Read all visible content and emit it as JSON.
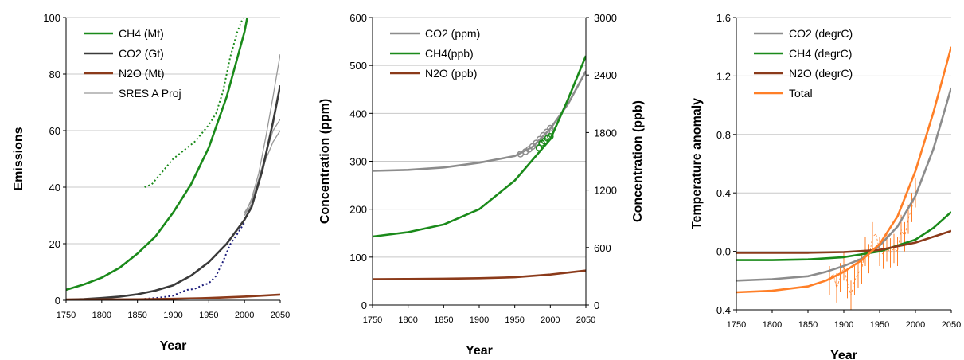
{
  "chart_data": [
    {
      "type": "line",
      "xlabel": "Year",
      "ylabel": "Emissions",
      "xlim": [
        1750,
        2050
      ],
      "ylim": [
        0,
        100
      ],
      "xticks": [
        1750,
        1800,
        1850,
        1900,
        1950,
        2000,
        2050
      ],
      "yticks": [
        0,
        20,
        40,
        60,
        80,
        100
      ],
      "legend": "top-left",
      "grid": "horizontal",
      "series": [
        {
          "name": "CH4 (Mt)",
          "color": "#1a8a1a",
          "x": [
            1750,
            1775,
            1800,
            1825,
            1850,
            1875,
            1900,
            1925,
            1950,
            1975,
            2000,
            2010
          ],
          "y": [
            3.7,
            5.6,
            8,
            11.5,
            16.5,
            22.5,
            31,
            41,
            54,
            72,
            95,
            108
          ]
        },
        {
          "name": "CO2 (Gt)",
          "color": "#3a3a3a",
          "x": [
            1750,
            1775,
            1800,
            1825,
            1850,
            1875,
            1900,
            1925,
            1950,
            1975,
            2000,
            2010,
            2025,
            2040,
            2050
          ],
          "y": [
            0.2,
            0.4,
            0.8,
            1.3,
            2.1,
            3.4,
            5.3,
            8.7,
            13.5,
            20,
            28.5,
            33,
            46,
            63,
            76
          ]
        },
        {
          "name": "N2O (Mt)",
          "color": "#8b3a1a",
          "x": [
            1750,
            1800,
            1850,
            1900,
            1950,
            2000,
            2050
          ],
          "y": [
            0.25,
            0.3,
            0.35,
            0.5,
            0.8,
            1.3,
            2.0
          ]
        },
        {
          "name": "SRES A Proj",
          "color": "#999999",
          "x": [
            2000,
            2010,
            2020,
            2030,
            2040,
            2050
          ],
          "y": [
            30,
            36,
            45,
            58,
            72,
            87
          ]
        }
      ],
      "extra_series": [
        {
          "style": "dotted",
          "color": "#1a8a1a",
          "x": [
            1860,
            1870,
            1880,
            1890,
            1900,
            1910,
            1920,
            1930,
            1940,
            1950,
            1960,
            1970,
            1980,
            1990,
            1998
          ],
          "y": [
            40,
            41,
            44,
            47,
            50,
            52,
            54,
            56,
            59,
            62,
            66,
            74,
            86,
            95,
            100
          ]
        },
        {
          "style": "dotted",
          "color": "#1a1a7a",
          "x": [
            1860,
            1880,
            1900,
            1910,
            1920,
            1930,
            1940,
            1950,
            1960,
            1970,
            1980,
            1990,
            2000
          ],
          "y": [
            0.5,
            0.9,
            1.6,
            2.8,
            3.7,
            4,
            5.2,
            6,
            8.6,
            13.8,
            19.8,
            23.5,
            27.5
          ]
        },
        {
          "style": "solid",
          "color": "#999999",
          "x": [
            2000,
            2010,
            2020,
            2030,
            2040,
            2050
          ],
          "y": [
            31,
            35,
            43,
            52,
            60,
            64
          ]
        },
        {
          "style": "solid",
          "color": "#999999",
          "x": [
            2000,
            2010,
            2020,
            2030,
            2040,
            2050
          ],
          "y": [
            30,
            34,
            42,
            50,
            56,
            60
          ]
        }
      ]
    },
    {
      "type": "line",
      "xlabel": "Year",
      "ylabel": "Concentration (ppm)",
      "ylabel_right": "Concentration (ppb)",
      "xlim": [
        1750,
        2050
      ],
      "ylim": [
        0,
        600
      ],
      "ylim_right": [
        0,
        3000
      ],
      "xticks": [
        1750,
        1800,
        1850,
        1900,
        1950,
        2000,
        2050
      ],
      "yticks": [
        0,
        100,
        200,
        300,
        400,
        500,
        600
      ],
      "yticks_right": [
        0,
        600,
        1200,
        1800,
        2400,
        3000
      ],
      "legend": "top-left",
      "grid": "horizontal",
      "series": [
        {
          "name": "CO2 (ppm)",
          "color": "#8c8c8c",
          "axis": "left",
          "x": [
            1750,
            1800,
            1850,
            1900,
            1950,
            1975,
            2000,
            2025,
            2050
          ],
          "y": [
            280,
            282,
            287,
            297,
            311,
            330,
            368,
            420,
            488
          ]
        },
        {
          "name": "CH4(ppb)",
          "color": "#1a8a1a",
          "axis": "right",
          "x": [
            1750,
            1800,
            1850,
            1900,
            1950,
            2000,
            2025,
            2050
          ],
          "y": [
            715,
            760,
            840,
            1000,
            1300,
            1730,
            2150,
            2600
          ]
        },
        {
          "name": "N2O (ppb)",
          "color": "#8b3a1a",
          "axis": "right",
          "x": [
            1750,
            1800,
            1850,
            1900,
            1950,
            2000,
            2050
          ],
          "y": [
            270,
            272,
            275,
            280,
            290,
            318,
            360
          ]
        }
      ],
      "observations": [
        {
          "color": "#8c8c8c",
          "axis": "left",
          "x": [
            1958,
            1965,
            1970,
            1975,
            1980,
            1985,
            1990,
            1995,
            2000
          ],
          "y": [
            315,
            320,
            325,
            331,
            338,
            346,
            354,
            361,
            369
          ]
        },
        {
          "color": "#1a8a1a",
          "axis": "right",
          "x": [
            1984,
            1988,
            1992,
            1996,
            2000
          ],
          "y": [
            1640,
            1690,
            1710,
            1740,
            1760
          ]
        }
      ]
    },
    {
      "type": "line",
      "xlabel": "Year",
      "ylabel": "Temperature anomaly",
      "xlim": [
        1750,
        2050
      ],
      "ylim": [
        -0.4,
        1.6
      ],
      "xticks": [
        1750,
        1800,
        1850,
        1900,
        1950,
        2000,
        2050
      ],
      "yticks": [
        -0.4,
        0.0,
        0.4,
        0.8,
        1.2,
        1.6
      ],
      "legend": "top-left",
      "grid": "horizontal",
      "series": [
        {
          "name": "CO2 (degrC)",
          "color": "#8c8c8c",
          "x": [
            1750,
            1800,
            1850,
            1875,
            1900,
            1925,
            1950,
            1975,
            2000,
            2025,
            2050
          ],
          "y": [
            -0.2,
            -0.19,
            -0.17,
            -0.14,
            -0.1,
            -0.05,
            0.04,
            0.17,
            0.38,
            0.7,
            1.12
          ]
        },
        {
          "name": "CH4 (degrC)",
          "color": "#1a8a1a",
          "x": [
            1750,
            1800,
            1850,
            1900,
            1950,
            2000,
            2025,
            2050
          ],
          "y": [
            -0.06,
            -0.06,
            -0.055,
            -0.04,
            0.0,
            0.08,
            0.16,
            0.27
          ]
        },
        {
          "name": "N2O (degrC)",
          "color": "#8b3a1a",
          "x": [
            1750,
            1800,
            1850,
            1900,
            1950,
            2000,
            2050
          ],
          "y": [
            -0.01,
            -0.01,
            -0.01,
            -0.005,
            0.01,
            0.06,
            0.14
          ]
        },
        {
          "name": "Total",
          "color": "#ff7f27",
          "x": [
            1750,
            1800,
            1850,
            1875,
            1900,
            1925,
            1950,
            1975,
            2000,
            2025,
            2050
          ],
          "y": [
            -0.28,
            -0.27,
            -0.24,
            -0.2,
            -0.14,
            -0.06,
            0.05,
            0.24,
            0.55,
            0.95,
            1.4
          ]
        }
      ],
      "observations": {
        "color": "#ff7f27",
        "x": [
          1880,
          1885,
          1890,
          1895,
          1900,
          1905,
          1910,
          1915,
          1920,
          1925,
          1930,
          1935,
          1940,
          1945,
          1950,
          1955,
          1960,
          1965,
          1970,
          1975,
          1980,
          1985,
          1990,
          1995,
          2000
        ],
        "y": [
          -0.2,
          -0.15,
          -0.25,
          -0.18,
          -0.1,
          -0.22,
          -0.3,
          -0.2,
          -0.15,
          -0.12,
          0.0,
          -0.05,
          0.1,
          0.12,
          0.0,
          -0.02,
          0.03,
          -0.01,
          0.02,
          0.0,
          0.15,
          0.1,
          0.22,
          0.3,
          0.4
        ],
        "spread": 0.1
      }
    }
  ]
}
